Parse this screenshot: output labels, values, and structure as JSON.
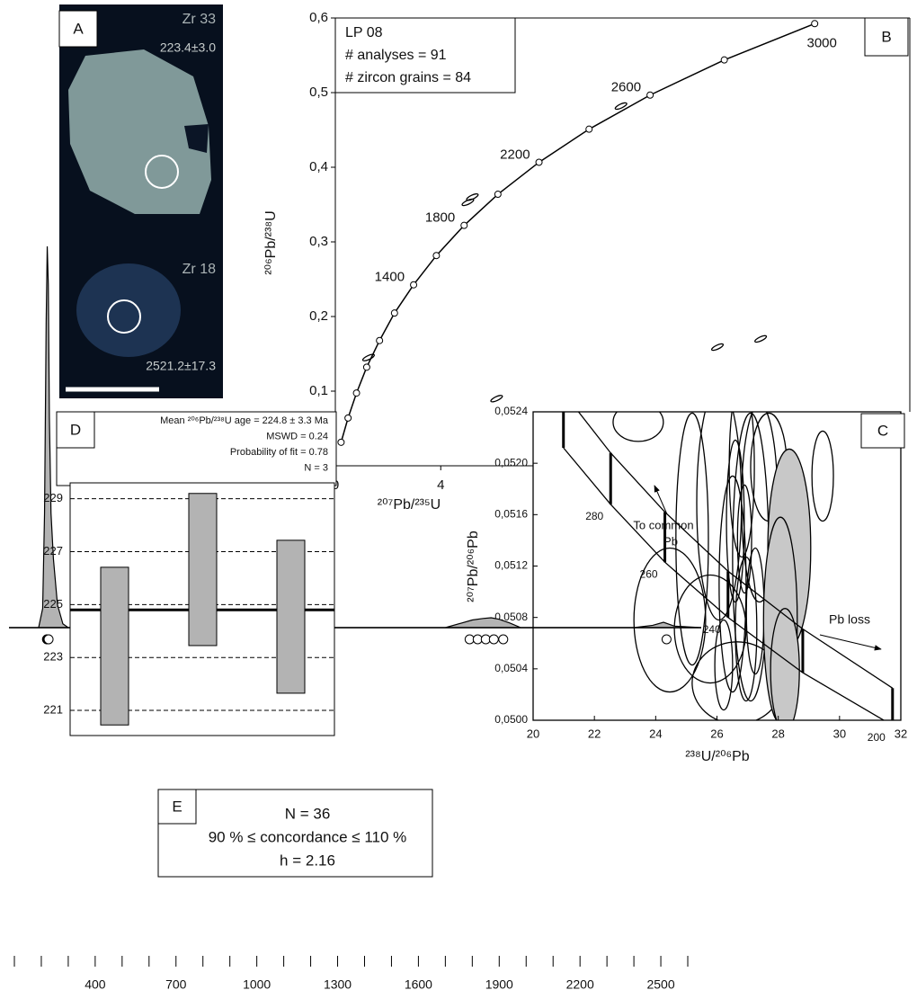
{
  "panel_a": {
    "label": "A",
    "grains": [
      {
        "name": "Zr 33",
        "age": "223.4±3.0"
      },
      {
        "name": "Zr 18",
        "age": "2521.2±17.3"
      }
    ]
  },
  "chart_data": [
    {
      "type": "concordia",
      "label": "B",
      "info": [
        "LP 08",
        "# analyses = 91",
        "# zircon grains = 84"
      ],
      "xlabel": "²⁰⁷Pb/²³⁵U",
      "ylabel": "²⁰⁶Pb/²³⁸U",
      "xlim": [
        0,
        21.8
      ],
      "ylim": [
        0,
        0.6
      ],
      "xticks": [
        0,
        4
      ],
      "yticks": [
        {
          "value": 0,
          "label": "0,0"
        },
        {
          "value": 0.1,
          "label": "0,1"
        },
        {
          "value": 0.2,
          "label": "0,2"
        },
        {
          "value": 0.3,
          "label": "0,3"
        },
        {
          "value": 0.4,
          "label": "0,4"
        },
        {
          "value": 0.5,
          "label": "0,5"
        },
        {
          "value": 0.6,
          "label": "0,6"
        }
      ],
      "concordia": {
        "ages": [
          200,
          400,
          600,
          800,
          1000,
          1200,
          1400,
          1600,
          1800,
          2000,
          2200,
          2400,
          2600,
          2800,
          3000
        ],
        "x": [
          0.2177,
          0.4826,
          0.8034,
          1.1904,
          1.6774,
          2.2452,
          2.97,
          3.834,
          4.887,
          6.169,
          7.729,
          9.629,
          11.944,
          14.76,
          18.19
        ],
        "y": [
          0.0315,
          0.064,
          0.0975,
          0.1321,
          0.1678,
          0.2046,
          0.2425,
          0.2817,
          0.3221,
          0.3638,
          0.4067,
          0.451,
          0.4967,
          0.5438,
          0.5924
        ],
        "age_labels": [
          1400,
          1800,
          2200,
          2600,
          3000
        ]
      },
      "analyses": {
        "x": [
          1.26,
          5.03,
          5.2,
          10.84,
          14.5,
          16.14,
          6.12
        ],
        "y": [
          0.145,
          0.353,
          0.36,
          0.482,
          0.159,
          0.17,
          0.09
        ]
      }
    },
    {
      "type": "tera_wasserburg",
      "label": "C",
      "xlabel": "²³⁸U/²⁰⁶Pb",
      "ylabel": "²⁰⁷Pb/²⁰⁶Pb",
      "xlim": [
        20,
        32
      ],
      "ylim": [
        0.05,
        0.0524
      ],
      "xticks": [
        20,
        22,
        24,
        26,
        28,
        30,
        32
      ],
      "yticks": [
        {
          "value": 0.05,
          "label": "0,0500"
        },
        {
          "value": 0.0504,
          "label": "0,0504"
        },
        {
          "value": 0.0508,
          "label": "0,0508"
        },
        {
          "value": 0.0512,
          "label": "0,0512"
        },
        {
          "value": 0.0516,
          "label": "0,0516"
        },
        {
          "value": 0.052,
          "label": "0,0520"
        },
        {
          "value": 0.0524,
          "label": "0,0524"
        }
      ],
      "concordia": {
        "ages": [
          300,
          280,
          260,
          240,
          220,
          200
        ],
        "x": [
          20.99,
          22.53,
          24.3,
          26.36,
          28.8,
          31.73
        ],
        "y_upper": [
          0.05255,
          0.05208,
          0.05162,
          0.05116,
          0.05071,
          0.05025
        ],
        "y_lower": [
          0.05212,
          0.05168,
          0.05123,
          0.0508,
          0.05037,
          0.04996
        ],
        "age_labels": [
          280,
          260,
          240,
          200
        ]
      },
      "ellipses": {
        "x": [
          23.43,
          25.19,
          26.07,
          26.51,
          26.81,
          26.95,
          27.1,
          25.78,
          24.46,
          26.66,
          27.39,
          27.69,
          29.45,
          26.22,
          26.9,
          26.6,
          27.25
        ],
        "y": [
          0.05232,
          0.05141,
          0.05169,
          0.05106,
          0.05197,
          0.05071,
          0.05127,
          0.05071,
          0.05078,
          0.05029,
          0.05169,
          0.05197,
          0.0519,
          0.05043,
          0.05141,
          0.05155,
          0.05085
        ],
        "rx": [
          0.82,
          0.53,
          0.73,
          0.44,
          0.41,
          0.35,
          0.59,
          1.17,
          1.17,
          1.47,
          0.59,
          0.59,
          0.35,
          0.29,
          0.23,
          0.29,
          0.29
        ],
        "ry": [
          0.00015,
          0.00098,
          0.00091,
          0.00084,
          0.0007,
          0.00056,
          0.00112,
          0.00042,
          0.00056,
          0.00032,
          0.00077,
          0.00042,
          0.00035,
          0.00035,
          0.00042,
          0.00063,
          0.00049
        ]
      },
      "selected": {
        "x": [
          28.36,
          28.07,
          28.22
        ],
        "y": [
          0.05134,
          0.05078,
          0.05039
        ],
        "rx": [
          0.7,
          0.55,
          0.47
        ],
        "ry": [
          0.00077,
          0.0008,
          0.00048
        ],
        "color": "#c8c8c8"
      },
      "annotations": {
        "common": [
          "To common",
          "Pb"
        ],
        "loss": "Pb loss"
      }
    },
    {
      "type": "weighted_mean",
      "label": "D",
      "text": [
        "Mean ²⁰⁶Pb/²³⁸U age = 224.8 ± 3.3 Ma",
        "MSWD = 0.24",
        "Probability of fit = 0.78",
        "N = 3"
      ],
      "ylim": [
        220.05,
        229.6
      ],
      "yticks": [
        221,
        223,
        225,
        227,
        229
      ],
      "grid": true,
      "low": [
        220.45,
        223.45,
        221.65
      ],
      "high": [
        226.41,
        229.2,
        227.43
      ],
      "mean": 224.8,
      "color": "#b3b3b3"
    },
    {
      "type": "kde",
      "label": "E",
      "text": [
        "N = 36",
        "90 % ≤ concordance ≤ 110 %",
        "h = 2.16"
      ],
      "xlim": [
        80,
        2650
      ],
      "xticks": [
        400,
        700,
        1000,
        1300,
        1600,
        1900,
        2200,
        2500
      ],
      "xminor": [
        100,
        200,
        300,
        400,
        500,
        600,
        700,
        800,
        900,
        1000,
        1100,
        1200,
        1300,
        1400,
        1500,
        1600,
        1700,
        1800,
        1900,
        2000,
        2100,
        2200,
        2300,
        2400,
        2500,
        2600
      ],
      "kde": {
        "x": [
          80,
          190,
          205,
          212,
          218,
          222,
          226,
          230,
          236,
          245,
          260,
          280,
          300,
          480,
          530,
          550,
          565,
          580,
          620,
          1700,
          1760,
          1800,
          1840,
          1870,
          1900,
          1940,
          1980,
          2400,
          2470,
          2510,
          2550,
          2650
        ],
        "y": [
          0,
          0,
          0.05,
          0.3,
          0.8,
          1.0,
          0.9,
          0.55,
          0.3,
          0.18,
          0.06,
          0.01,
          0,
          0,
          0.005,
          0.03,
          0.005,
          0,
          0,
          0,
          0.012,
          0.02,
          0.024,
          0.026,
          0.022,
          0.012,
          0,
          0,
          0.006,
          0.014,
          0.004,
          0
        ]
      },
      "ages": [
        221,
        223,
        224,
        225,
        227,
        546,
        1790,
        1820,
        1850,
        1880,
        1915,
        2521.2
      ],
      "color": "#b3b3b3"
    }
  ]
}
